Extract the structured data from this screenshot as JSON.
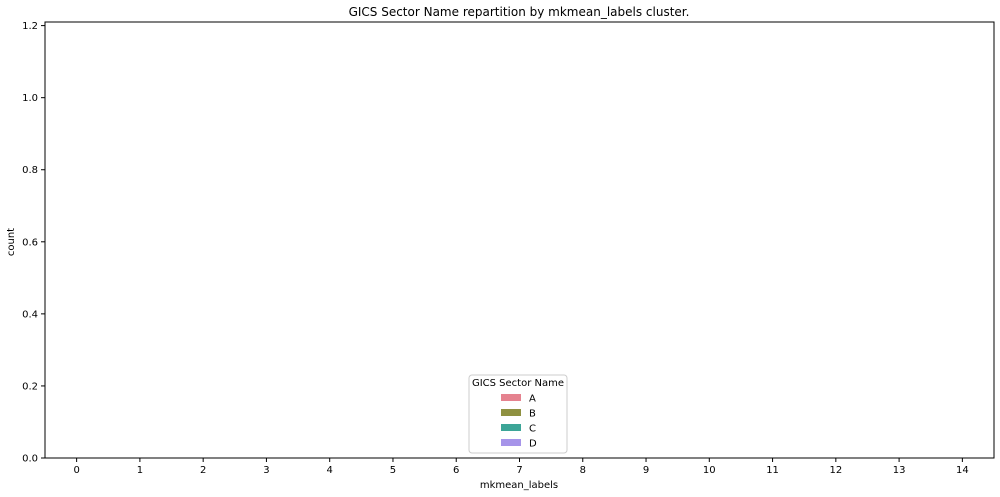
{
  "chart_data": {
    "type": "bar",
    "title": "GICS Sector Name repartition by mkmean_labels cluster.",
    "xlabel": "mkmean_labels",
    "ylabel": "count",
    "categories": [
      "0",
      "1",
      "2",
      "3",
      "4",
      "5",
      "6",
      "7",
      "8",
      "9",
      "10",
      "11",
      "12",
      "13",
      "14"
    ],
    "ylim": [
      0,
      1.21
    ],
    "yticks": [
      "0.0",
      "0.2",
      "0.4",
      "0.6",
      "0.8",
      "1.0",
      "1.2"
    ],
    "series": [
      {
        "name": "A",
        "color": "#e5828f",
        "values": [
          0,
          0,
          0,
          0,
          0,
          0,
          0,
          0,
          0,
          0,
          0,
          0,
          0,
          0,
          0
        ]
      },
      {
        "name": "B",
        "color": "#8f9141",
        "values": [
          0,
          0,
          0,
          0,
          0,
          0,
          0,
          0,
          0,
          0,
          0,
          0,
          0,
          0,
          0
        ]
      },
      {
        "name": "C",
        "color": "#3ca597",
        "values": [
          0,
          0,
          0,
          0,
          0,
          0,
          0,
          0,
          0,
          0,
          0,
          0,
          0,
          0,
          0
        ]
      },
      {
        "name": "D",
        "color": "#a694e9",
        "values": [
          0,
          0,
          0,
          0,
          0,
          0,
          0,
          0,
          0,
          0,
          0,
          0,
          0,
          0,
          0
        ]
      }
    ],
    "legend": {
      "title": "GICS Sector Name",
      "position": "lower-center"
    },
    "grid": false
  }
}
